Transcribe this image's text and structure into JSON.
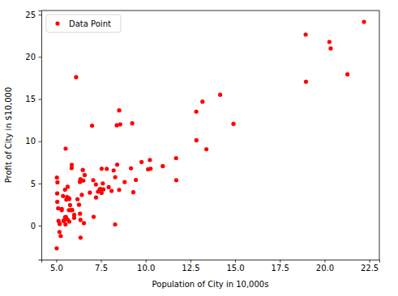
{
  "chart_data": {
    "type": "scatter",
    "x_label": "Population of City in 10,000s",
    "y_label": "Profit of City in $10,000",
    "x": [
      6.1101,
      5.5277,
      8.5186,
      7.0032,
      5.8598,
      8.3829,
      7.4764,
      8.5781,
      6.4862,
      5.0546,
      5.7107,
      14.164,
      5.734,
      8.4084,
      5.6407,
      5.3794,
      6.3654,
      5.1301,
      6.4296,
      7.0708,
      6.1891,
      20.27,
      5.4901,
      6.3261,
      5.5649,
      18.945,
      12.828,
      10.957,
      13.176,
      22.203,
      5.2524,
      6.5894,
      9.2482,
      5.8918,
      8.2111,
      7.9334,
      8.0959,
      5.6063,
      12.836,
      6.3534,
      5.4069,
      6.8825,
      11.708,
      5.7737,
      7.8247,
      7.0931,
      5.0702,
      5.8014,
      11.7,
      5.5416,
      7.5402,
      5.3077,
      7.4239,
      7.6031,
      6.3328,
      6.3589,
      6.2742,
      5.6397,
      9.3102,
      9.4536,
      8.8254,
      5.1793,
      21.279,
      14.908,
      18.959,
      7.2182,
      8.2951,
      10.236,
      5.4994,
      20.341,
      10.136,
      7.3345,
      6.0062,
      7.2259,
      5.0269,
      6.5479,
      7.5386,
      5.0365,
      10.274,
      5.1077,
      5.7292,
      5.1884,
      6.3557,
      9.7687,
      6.5159,
      8.5172,
      9.1802,
      6.002,
      5.5204,
      5.0594,
      5.7077,
      7.6366,
      5.8707,
      5.3054,
      8.2934,
      13.394,
      5.4369
    ],
    "series": [
      {
        "name": "Data Point",
        "color": "#ff0000",
        "marker": "o",
        "values": [
          17.592,
          9.1302,
          13.662,
          11.854,
          6.8233,
          11.886,
          4.3483,
          12,
          6.5987,
          3.8166,
          3.2522,
          15.505,
          3.1551,
          7.2258,
          0.71618,
          3.5129,
          5.3048,
          0.56077,
          3.6518,
          5.3893,
          3.1386,
          21.767,
          4.263,
          5.1875,
          3.0825,
          22.638,
          13.501,
          7.0467,
          14.692,
          24.147,
          -1.22,
          5.9966,
          12.134,
          1.8495,
          6.5426,
          4.5623,
          4.1164,
          3.3928,
          10.117,
          5.4974,
          0.55657,
          3.9115,
          5.3854,
          2.4406,
          6.7318,
          1.0463,
          5.1337,
          1.844,
          8.0043,
          1.0179,
          6.7504,
          1.8396,
          4.2885,
          4.9981,
          1.4233,
          -1.4211,
          2.4756,
          4.6042,
          3.9624,
          5.4141,
          5.1694,
          -0.74279,
          17.929,
          12.054,
          17.054,
          4.8852,
          5.7442,
          7.7754,
          1.0173,
          20.992,
          6.6799,
          4.0259,
          1.2784,
          3.3411,
          -2.6807,
          0.29678,
          3.8845,
          5.7014,
          6.7526,
          2.0576,
          0.47953,
          0.20421,
          0.67861,
          7.5435,
          5.3436,
          4.2415,
          6.7981,
          0.92695,
          0.152,
          2.8214,
          1.8451,
          4.2959,
          7.2029,
          1.9869,
          0.14454,
          9.0551,
          0.61705
        ]
      }
    ],
    "xlim": [
      4.168,
      23.062
    ],
    "ylim": [
      -4.022,
      25.488
    ],
    "xticks": [
      {
        "value": 5,
        "label": "5.0"
      },
      {
        "value": 7.5,
        "label": "7.5"
      },
      {
        "value": 10,
        "label": "10.0"
      },
      {
        "value": 12.5,
        "label": "12.5"
      },
      {
        "value": 15,
        "label": "15.0"
      },
      {
        "value": 17.5,
        "label": "17.5"
      },
      {
        "value": 20,
        "label": "20.0"
      },
      {
        "value": 22.5,
        "label": "22.5"
      }
    ],
    "yticks": [
      0,
      5,
      10,
      15,
      20,
      25
    ],
    "legend": "upper left",
    "grid": false
  }
}
